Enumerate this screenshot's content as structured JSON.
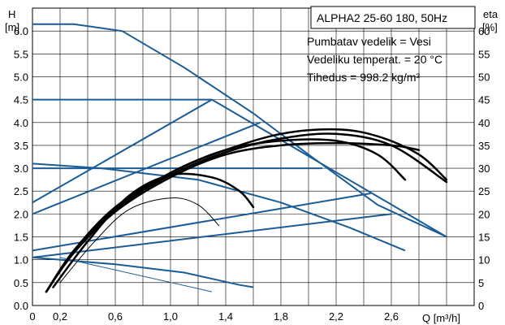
{
  "chart_data": {
    "type": "line",
    "title": "ALPHA2 25-60 180, 50Hz",
    "annotations": [
      "Pumbatav vedelik = Vesi",
      "Vedeliku temperat. = 20 °C",
      "Tihedus = 998.2 kg/m³"
    ],
    "y_left_label": [
      "H",
      "[m]"
    ],
    "y_right_label": [
      "eta",
      "[%]"
    ],
    "x_label": "Q [m³/h]",
    "x_ticks": [
      "0",
      "0,2",
      "0,6",
      "1,0",
      "1,4",
      "1,8",
      "2,2",
      "2,6"
    ],
    "x_tick_values": [
      0,
      0.2,
      0.6,
      1.0,
      1.4,
      1.8,
      2.2,
      2.6
    ],
    "y_left_ticks": [
      "0.0",
      "0.5",
      "1.0",
      "1.5",
      "2.0",
      "2.5",
      "3.0",
      "3.5",
      "4.0",
      "4.5",
      "5.0",
      "5.5",
      "6.0"
    ],
    "y_right_ticks": [
      "0",
      "5",
      "10",
      "15",
      "20",
      "25",
      "30",
      "35",
      "40",
      "45",
      "50",
      "55",
      "60"
    ],
    "xlim": [
      0,
      3.2
    ],
    "ylim_left": [
      0,
      6.5
    ],
    "ylim_right": [
      0,
      65
    ],
    "grid": true,
    "colors": {
      "head": "#1a5c96",
      "efficiency": "#000000",
      "grid": "#000000"
    },
    "head_curves": [
      {
        "points": [
          [
            0,
            6.15
          ],
          [
            0.3,
            6.15
          ],
          [
            0.65,
            6.0
          ],
          [
            1.1,
            5.2
          ],
          [
            1.6,
            4.2
          ],
          [
            2.0,
            3.3
          ],
          [
            2.5,
            2.2
          ],
          [
            3.0,
            1.5
          ]
        ]
      },
      {
        "points": [
          [
            0,
            4.5
          ],
          [
            1.3,
            4.5
          ],
          [
            3.0,
            1.5
          ]
        ]
      },
      {
        "points": [
          [
            0,
            3.1
          ],
          [
            0.5,
            3.0
          ],
          [
            1.2,
            2.75
          ],
          [
            1.8,
            2.25
          ],
          [
            2.3,
            1.7
          ],
          [
            2.7,
            1.2
          ]
        ]
      },
      {
        "points": [
          [
            0,
            1.05
          ],
          [
            0.6,
            0.9
          ],
          [
            1.1,
            0.72
          ],
          [
            1.5,
            0.45
          ],
          [
            1.6,
            0.4
          ]
        ]
      }
    ],
    "control_lines": [
      {
        "points": [
          [
            0,
            2.25
          ],
          [
            1.3,
            4.5
          ]
        ]
      },
      {
        "points": [
          [
            0,
            2.0
          ],
          [
            1.65,
            4.0
          ]
        ]
      },
      {
        "points": [
          [
            0,
            3.0
          ],
          [
            2.1,
            3.0
          ]
        ]
      },
      {
        "points": [
          [
            0,
            1.2
          ],
          [
            2.45,
            2.45
          ]
        ]
      },
      {
        "points": [
          [
            0,
            1.05
          ],
          [
            2.6,
            2.0
          ]
        ]
      },
      {
        "points": [
          [
            0.2,
            1.05
          ],
          [
            1.3,
            0.3
          ]
        ]
      }
    ],
    "efficiency_curves": [
      {
        "points": [
          [
            0.1,
            3
          ],
          [
            0.3,
            12
          ],
          [
            0.6,
            21
          ],
          [
            1.0,
            29
          ],
          [
            1.4,
            34
          ],
          [
            1.8,
            37.5
          ],
          [
            2.2,
            38.5
          ],
          [
            2.5,
            37
          ],
          [
            2.8,
            33
          ],
          [
            3.0,
            27.5
          ]
        ]
      },
      {
        "points": [
          [
            0.1,
            3
          ],
          [
            0.3,
            12
          ],
          [
            0.6,
            21
          ],
          [
            1.0,
            28.5
          ],
          [
            1.4,
            33.5
          ],
          [
            1.8,
            36.5
          ],
          [
            2.2,
            37.5
          ],
          [
            2.6,
            35
          ],
          [
            3.0,
            27
          ]
        ]
      },
      {
        "points": [
          [
            0.1,
            3
          ],
          [
            0.3,
            12
          ],
          [
            0.6,
            21.5
          ],
          [
            1.0,
            29
          ],
          [
            1.4,
            34
          ],
          [
            1.8,
            36
          ],
          [
            2.2,
            36
          ],
          [
            2.5,
            33
          ],
          [
            2.7,
            27.5
          ]
        ]
      },
      {
        "points": [
          [
            0.1,
            3
          ],
          [
            0.3,
            11.5
          ],
          [
            0.6,
            20.5
          ],
          [
            1.0,
            28
          ],
          [
            1.4,
            33
          ],
          [
            1.8,
            35
          ],
          [
            2.2,
            35.5
          ],
          [
            2.6,
            35
          ],
          [
            2.8,
            34
          ]
        ]
      },
      {
        "points": [
          [
            0.15,
            4
          ],
          [
            0.4,
            14
          ],
          [
            0.7,
            24
          ],
          [
            1.0,
            28.5
          ],
          [
            1.3,
            28
          ],
          [
            1.5,
            25
          ],
          [
            1.6,
            21.5
          ]
        ]
      },
      {
        "points": [
          [
            0.2,
            5
          ],
          [
            0.45,
            14
          ],
          [
            0.7,
            21
          ],
          [
            1.0,
            23.5
          ],
          [
            1.2,
            22
          ],
          [
            1.35,
            17.5
          ]
        ]
      }
    ]
  }
}
